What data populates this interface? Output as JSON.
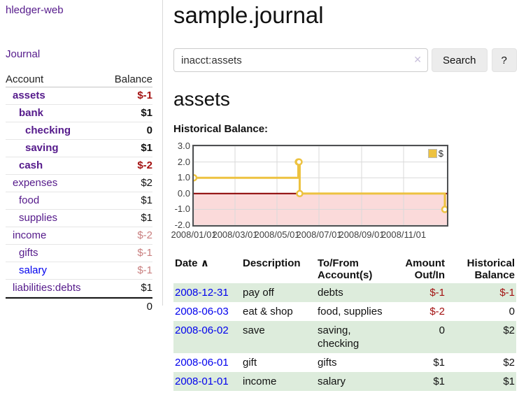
{
  "colors": {
    "purple": "#551a8b",
    "blue": "#0000ee",
    "negstrong": "#a31111",
    "negmuted": "#c97f7f",
    "rowgreen": "#ddecdc",
    "chartline": "#EDC240"
  },
  "app": {
    "brand": "hledger-web",
    "nav_journal": "Journal"
  },
  "sidebar": {
    "columns": {
      "account": "Account",
      "balance": "Balance"
    },
    "accounts": [
      {
        "label": "assets",
        "indent": 1,
        "balance": "$-1",
        "bold": true,
        "negative": "strong"
      },
      {
        "label": "bank",
        "indent": 2,
        "balance": "$1",
        "bold": true
      },
      {
        "label": "checking",
        "indent": 3,
        "balance": "0",
        "bold": true
      },
      {
        "label": "saving",
        "indent": 3,
        "balance": "$1",
        "bold": true
      },
      {
        "label": "cash",
        "indent": 2,
        "balance": "$-2",
        "bold": true,
        "negative": "strong"
      },
      {
        "label": "expenses",
        "indent": 1,
        "balance": "$2"
      },
      {
        "label": "food",
        "indent": 2,
        "balance": "$1"
      },
      {
        "label": "supplies",
        "indent": 2,
        "balance": "$1"
      },
      {
        "label": "income",
        "indent": 1,
        "balance": "$-2",
        "negative": "muted"
      },
      {
        "label": "gifts",
        "indent": 2,
        "balance": "$-1",
        "negative": "muted"
      },
      {
        "label": "salary",
        "indent": 2,
        "balance": "$-1",
        "negative": "muted",
        "link": "blue"
      },
      {
        "label": "liabilities:debts",
        "indent": 1,
        "balance": "$1"
      }
    ],
    "total": "0"
  },
  "header": {
    "title": "sample.journal"
  },
  "search": {
    "value": "inacct:assets",
    "clear_icon": "✕",
    "button_label": "Search",
    "help_label": "?"
  },
  "account_page": {
    "heading": "assets",
    "chart_label": "Historical Balance:"
  },
  "chart_data": {
    "type": "line",
    "title": "Historical Balance",
    "steps": true,
    "series": [
      {
        "name": "$",
        "color": "#EDC240",
        "points": [
          [
            "2008-01-01",
            1
          ],
          [
            "2008-06-01",
            2
          ],
          [
            "2008-06-02",
            2
          ],
          [
            "2008-06-03",
            0
          ],
          [
            "2008-12-31",
            -1
          ]
        ]
      }
    ],
    "ylim": [
      -2,
      3
    ],
    "yticks": [
      "3.0",
      "2.0",
      "1.0",
      "0.0",
      "-1.0",
      "-2.0"
    ],
    "xticks": [
      "2008/01/01",
      "2008/03/01",
      "2008/05/01",
      "2008/07/01",
      "2008/09/01",
      "2008/11/01"
    ],
    "x_start": "2008-01-01",
    "x_end": "2008-12-31",
    "grid": true,
    "legend_position": "top-right",
    "negative_region_color": "#fbdada",
    "zero_line_color": "#8b0000"
  },
  "register": {
    "sort_icon": "∧",
    "headers": [
      "Date",
      "Description",
      "To/From Account(s)",
      "Amount Out/In",
      "Historical Balance"
    ],
    "rows": [
      {
        "date": "2008-12-31",
        "description": "pay off",
        "accounts": "debts",
        "amount": "$-1",
        "balance": "$-1",
        "amount_neg": true,
        "balance_neg": true
      },
      {
        "date": "2008-06-03",
        "description": "eat & shop",
        "accounts": "food, supplies",
        "amount": "$-2",
        "balance": "0",
        "amount_neg": true
      },
      {
        "date": "2008-06-02",
        "description": "save",
        "accounts": "saving, checking",
        "amount": "0",
        "balance": "$2"
      },
      {
        "date": "2008-06-01",
        "description": "gift",
        "accounts": "gifts",
        "amount": "$1",
        "balance": "$2"
      },
      {
        "date": "2008-01-01",
        "description": "income",
        "accounts": "salary",
        "amount": "$1",
        "balance": "$1"
      }
    ]
  }
}
